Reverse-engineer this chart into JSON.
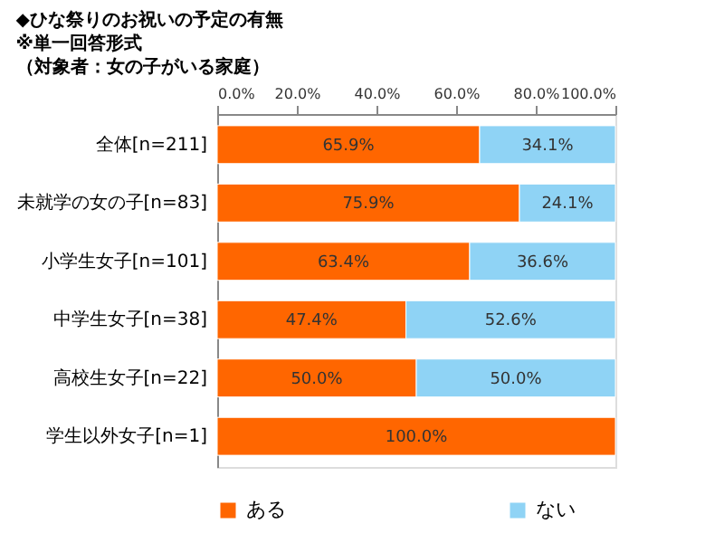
{
  "chart_data": {
    "type": "bar",
    "orientation": "horizontal",
    "stacked": true,
    "title": [
      "◆ひな祭りのお祝いの予定の有無",
      "※単一回答形式",
      "（対象者：女の子がいる家庭）"
    ],
    "categories": [
      "全体[n=211]",
      "未就学の女の子[n=83]",
      "小学生女子[n=101]",
      "中学生女子[n=38]",
      "高校生女子[n=22]",
      "学生以外女子[n=1]"
    ],
    "series": [
      {
        "name": "ある",
        "color": "#ff6600",
        "values": [
          65.9,
          75.9,
          63.4,
          47.4,
          50.0,
          100.0
        ],
        "value_labels": [
          "65.9%",
          "75.9%",
          "63.4%",
          "47.4%",
          "50.0%",
          "100.0%"
        ]
      },
      {
        "name": "ない",
        "color": "#8fd3f5",
        "values": [
          34.1,
          24.1,
          36.6,
          52.6,
          50.0,
          0
        ],
        "value_labels": [
          "34.1%",
          "24.1%",
          "36.6%",
          "52.6%",
          "50.0%",
          null
        ]
      }
    ],
    "xlim": [
      0,
      100
    ],
    "xticks": [
      {
        "value": 0,
        "label": "0.0%"
      },
      {
        "value": 20,
        "label": "20.0%"
      },
      {
        "value": 40,
        "label": "40.0%"
      },
      {
        "value": 60,
        "label": "60.0%"
      },
      {
        "value": 80,
        "label": "80.0%"
      },
      {
        "value": 100,
        "label": "100.0%"
      }
    ],
    "grid": false,
    "legend": "bottom"
  }
}
